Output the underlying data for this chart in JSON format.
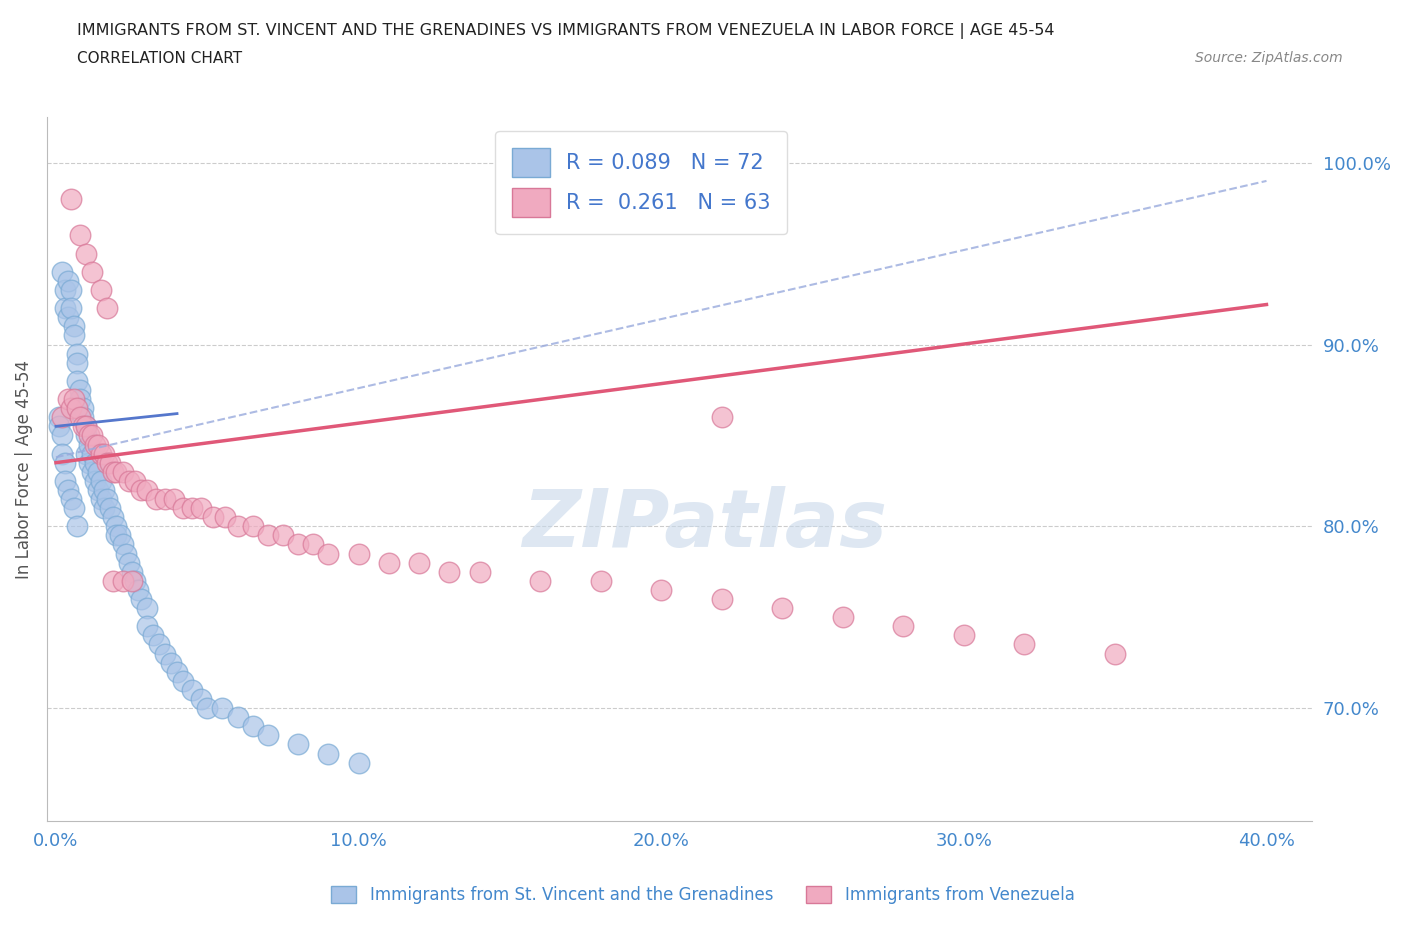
{
  "title": "IMMIGRANTS FROM ST. VINCENT AND THE GRENADINES VS IMMIGRANTS FROM VENEZUELA IN LABOR FORCE | AGE 45-54",
  "subtitle": "CORRELATION CHART",
  "source": "Source: ZipAtlas.com",
  "ylabel": "In Labor Force | Age 45-54",
  "xlim": [
    -0.003,
    0.415
  ],
  "ylim": [
    0.638,
    1.025
  ],
  "xticks": [
    0.0,
    0.1,
    0.2,
    0.3,
    0.4
  ],
  "xtick_labels": [
    "0.0%",
    "10.0%",
    "20.0%",
    "30.0%",
    "40.0%"
  ],
  "yticks": [
    0.7,
    0.8,
    0.9,
    1.0
  ],
  "ytick_labels": [
    "70.0%",
    "80.0%",
    "90.0%",
    "100.0%"
  ],
  "blue_color": "#aac4e8",
  "blue_edge": "#7aaad4",
  "pink_color": "#f0aac0",
  "pink_edge": "#d87898",
  "trend_blue_color": "#5577cc",
  "trend_blue_dash_color": "#99aadd",
  "trend_pink_color": "#e05878",
  "legend_R1": "0.089",
  "legend_N1": "72",
  "legend_R2": "0.261",
  "legend_N2": "63",
  "watermark": "ZIPatlas",
  "watermark_color": "#c8d8ea",
  "background_color": "#ffffff",
  "grid_color": "#cccccc",
  "title_color": "#222222",
  "axis_label_color": "#4488cc",
  "ylabel_color": "#555555",
  "legend_text_color": "#4477cc",
  "blue_x": [
    0.002,
    0.003,
    0.003,
    0.004,
    0.004,
    0.005,
    0.005,
    0.006,
    0.006,
    0.007,
    0.007,
    0.007,
    0.008,
    0.008,
    0.009,
    0.009,
    0.01,
    0.01,
    0.01,
    0.011,
    0.011,
    0.012,
    0.012,
    0.013,
    0.013,
    0.014,
    0.014,
    0.015,
    0.015,
    0.016,
    0.016,
    0.017,
    0.018,
    0.019,
    0.02,
    0.02,
    0.021,
    0.022,
    0.023,
    0.024,
    0.025,
    0.026,
    0.027,
    0.028,
    0.03,
    0.03,
    0.032,
    0.034,
    0.036,
    0.038,
    0.04,
    0.042,
    0.045,
    0.048,
    0.05,
    0.055,
    0.06,
    0.065,
    0.07,
    0.08,
    0.09,
    0.1,
    0.001,
    0.001,
    0.002,
    0.002,
    0.003,
    0.003,
    0.004,
    0.005,
    0.006,
    0.007
  ],
  "blue_y": [
    0.94,
    0.93,
    0.92,
    0.935,
    0.915,
    0.93,
    0.92,
    0.91,
    0.905,
    0.895,
    0.89,
    0.88,
    0.875,
    0.87,
    0.865,
    0.86,
    0.855,
    0.85,
    0.84,
    0.845,
    0.835,
    0.84,
    0.83,
    0.835,
    0.825,
    0.83,
    0.82,
    0.825,
    0.815,
    0.82,
    0.81,
    0.815,
    0.81,
    0.805,
    0.8,
    0.795,
    0.795,
    0.79,
    0.785,
    0.78,
    0.775,
    0.77,
    0.765,
    0.76,
    0.755,
    0.745,
    0.74,
    0.735,
    0.73,
    0.725,
    0.72,
    0.715,
    0.71,
    0.705,
    0.7,
    0.7,
    0.695,
    0.69,
    0.685,
    0.68,
    0.675,
    0.67,
    0.86,
    0.855,
    0.85,
    0.84,
    0.835,
    0.825,
    0.82,
    0.815,
    0.81,
    0.8
  ],
  "pink_x": [
    0.002,
    0.004,
    0.005,
    0.006,
    0.007,
    0.008,
    0.009,
    0.01,
    0.011,
    0.012,
    0.013,
    0.014,
    0.015,
    0.016,
    0.017,
    0.018,
    0.019,
    0.02,
    0.022,
    0.024,
    0.026,
    0.028,
    0.03,
    0.033,
    0.036,
    0.039,
    0.042,
    0.045,
    0.048,
    0.052,
    0.056,
    0.06,
    0.065,
    0.07,
    0.075,
    0.08,
    0.085,
    0.09,
    0.1,
    0.11,
    0.12,
    0.13,
    0.14,
    0.16,
    0.18,
    0.2,
    0.22,
    0.24,
    0.26,
    0.28,
    0.3,
    0.32,
    0.35,
    0.005,
    0.008,
    0.01,
    0.012,
    0.015,
    0.017,
    0.019,
    0.022,
    0.025,
    0.22
  ],
  "pink_y": [
    0.86,
    0.87,
    0.865,
    0.87,
    0.865,
    0.86,
    0.855,
    0.855,
    0.85,
    0.85,
    0.845,
    0.845,
    0.84,
    0.84,
    0.835,
    0.835,
    0.83,
    0.83,
    0.83,
    0.825,
    0.825,
    0.82,
    0.82,
    0.815,
    0.815,
    0.815,
    0.81,
    0.81,
    0.81,
    0.805,
    0.805,
    0.8,
    0.8,
    0.795,
    0.795,
    0.79,
    0.79,
    0.785,
    0.785,
    0.78,
    0.78,
    0.775,
    0.775,
    0.77,
    0.77,
    0.765,
    0.76,
    0.755,
    0.75,
    0.745,
    0.74,
    0.735,
    0.73,
    0.98,
    0.96,
    0.95,
    0.94,
    0.93,
    0.92,
    0.77,
    0.77,
    0.77,
    0.86
  ],
  "trend_pink_x0": 0.0,
  "trend_pink_y0": 0.835,
  "trend_pink_x1": 0.4,
  "trend_pink_y1": 0.922,
  "trend_blue_solid_x0": 0.0,
  "trend_blue_solid_y0": 0.855,
  "trend_blue_solid_x1": 0.04,
  "trend_blue_solid_y1": 0.862,
  "trend_blue_dash_x0": 0.0,
  "trend_blue_dash_y0": 0.838,
  "trend_blue_dash_x1": 0.4,
  "trend_blue_dash_y1": 0.99
}
